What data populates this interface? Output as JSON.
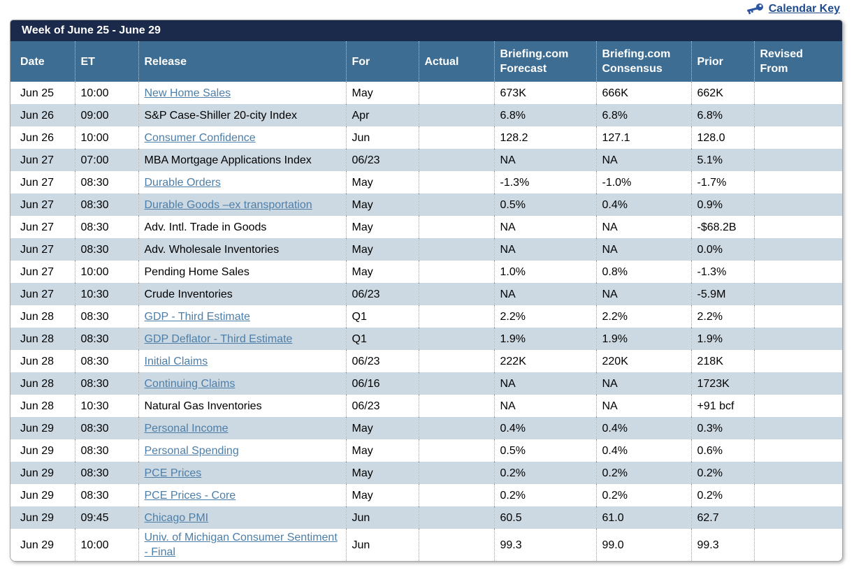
{
  "colors": {
    "title_bar_bg": "#1b2a4a",
    "header_bg": "#3d6d92",
    "alt_row_bg": "#cdd9e2",
    "release_link": "#4d7ea8",
    "calendar_key_link": "#1f4c8f",
    "key_icon": "#2b54a3"
  },
  "topbar": {
    "calendar_key_label": "Calendar Key",
    "calendar_key_icon": "key-icon"
  },
  "table": {
    "title": "Week of June 25 - June 29",
    "columns": [
      "Date",
      "ET",
      "Release",
      "For",
      "Actual",
      "Briefing.com Forecast",
      "Briefing.com Consensus",
      "Prior",
      "Revised From"
    ],
    "rows": [
      {
        "date": "Jun 25",
        "et": "10:00",
        "release": "New Home Sales",
        "link": true,
        "for": "May",
        "actual": "",
        "forecast": "673K",
        "consensus": "666K",
        "prior": "662K",
        "revised_from": ""
      },
      {
        "date": "Jun 26",
        "et": "09:00",
        "release": "S&P Case-Shiller 20-city Index",
        "link": false,
        "for": "Apr",
        "actual": "",
        "forecast": "6.8%",
        "consensus": "6.8%",
        "prior": "6.8%",
        "revised_from": ""
      },
      {
        "date": "Jun 26",
        "et": "10:00",
        "release": "Consumer Confidence",
        "link": true,
        "for": "Jun",
        "actual": "",
        "forecast": "128.2",
        "consensus": "127.1",
        "prior": "128.0",
        "revised_from": ""
      },
      {
        "date": "Jun 27",
        "et": "07:00",
        "release": "MBA Mortgage Applications Index",
        "link": false,
        "for": "06/23",
        "actual": "",
        "forecast": "NA",
        "consensus": "NA",
        "prior": "5.1%",
        "revised_from": ""
      },
      {
        "date": "Jun 27",
        "et": "08:30",
        "release": "Durable Orders",
        "link": true,
        "for": "May",
        "actual": "",
        "forecast": "-1.3%",
        "consensus": "-1.0%",
        "prior": "-1.7%",
        "revised_from": ""
      },
      {
        "date": "Jun 27",
        "et": "08:30",
        "release": "Durable Goods –ex transportation",
        "link": true,
        "for": "May",
        "actual": "",
        "forecast": "0.5%",
        "consensus": "0.4%",
        "prior": "0.9%",
        "revised_from": ""
      },
      {
        "date": "Jun 27",
        "et": "08:30",
        "release": "Adv. Intl. Trade in Goods",
        "link": false,
        "for": "May",
        "actual": "",
        "forecast": "NA",
        "consensus": "NA",
        "prior": "-$68.2B",
        "revised_from": ""
      },
      {
        "date": "Jun 27",
        "et": "08:30",
        "release": "Adv. Wholesale Inventories",
        "link": false,
        "for": "May",
        "actual": "",
        "forecast": "NA",
        "consensus": "NA",
        "prior": "0.0%",
        "revised_from": ""
      },
      {
        "date": "Jun 27",
        "et": "10:00",
        "release": "Pending Home Sales",
        "link": false,
        "for": "May",
        "actual": "",
        "forecast": "1.0%",
        "consensus": "0.8%",
        "prior": "-1.3%",
        "revised_from": ""
      },
      {
        "date": "Jun 27",
        "et": "10:30",
        "release": "Crude Inventories",
        "link": false,
        "for": "06/23",
        "actual": "",
        "forecast": "NA",
        "consensus": "NA",
        "prior": "-5.9M",
        "revised_from": ""
      },
      {
        "date": "Jun 28",
        "et": "08:30",
        "release": "GDP - Third Estimate",
        "link": true,
        "for": "Q1",
        "actual": "",
        "forecast": "2.2%",
        "consensus": "2.2%",
        "prior": "2.2%",
        "revised_from": ""
      },
      {
        "date": "Jun 28",
        "et": "08:30",
        "release": "GDP Deflator - Third Estimate",
        "link": true,
        "for": "Q1",
        "actual": "",
        "forecast": "1.9%",
        "consensus": "1.9%",
        "prior": "1.9%",
        "revised_from": ""
      },
      {
        "date": "Jun 28",
        "et": "08:30",
        "release": "Initial Claims",
        "link": true,
        "for": "06/23",
        "actual": "",
        "forecast": "222K",
        "consensus": "220K",
        "prior": "218K",
        "revised_from": ""
      },
      {
        "date": "Jun 28",
        "et": "08:30",
        "release": "Continuing Claims",
        "link": true,
        "for": "06/16",
        "actual": "",
        "forecast": "NA",
        "consensus": "NA",
        "prior": "1723K",
        "revised_from": ""
      },
      {
        "date": "Jun 28",
        "et": "10:30",
        "release": "Natural Gas Inventories",
        "link": false,
        "for": "06/23",
        "actual": "",
        "forecast": "NA",
        "consensus": "NA",
        "prior": "+91 bcf",
        "revised_from": ""
      },
      {
        "date": "Jun 29",
        "et": "08:30",
        "release": "Personal Income",
        "link": true,
        "for": "May",
        "actual": "",
        "forecast": "0.4%",
        "consensus": "0.4%",
        "prior": "0.3%",
        "revised_from": ""
      },
      {
        "date": "Jun 29",
        "et": "08:30",
        "release": "Personal Spending",
        "link": true,
        "for": "May",
        "actual": "",
        "forecast": "0.5%",
        "consensus": "0.4%",
        "prior": "0.6%",
        "revised_from": ""
      },
      {
        "date": "Jun 29",
        "et": "08:30",
        "release": "PCE Prices",
        "link": true,
        "for": "May",
        "actual": "",
        "forecast": "0.2%",
        "consensus": "0.2%",
        "prior": "0.2%",
        "revised_from": ""
      },
      {
        "date": "Jun 29",
        "et": "08:30",
        "release": "PCE Prices - Core",
        "link": true,
        "for": "May",
        "actual": "",
        "forecast": "0.2%",
        "consensus": "0.2%",
        "prior": "0.2%",
        "revised_from": ""
      },
      {
        "date": "Jun 29",
        "et": "09:45",
        "release": "Chicago PMI",
        "link": true,
        "for": "Jun",
        "actual": "",
        "forecast": "60.5",
        "consensus": "61.0",
        "prior": "62.7",
        "revised_from": ""
      },
      {
        "date": "Jun 29",
        "et": "10:00",
        "release": "Univ. of Michigan Consumer Sentiment - Final",
        "link": true,
        "for": "Jun",
        "actual": "",
        "forecast": "99.3",
        "consensus": "99.0",
        "prior": "99.3",
        "revised_from": ""
      }
    ]
  }
}
